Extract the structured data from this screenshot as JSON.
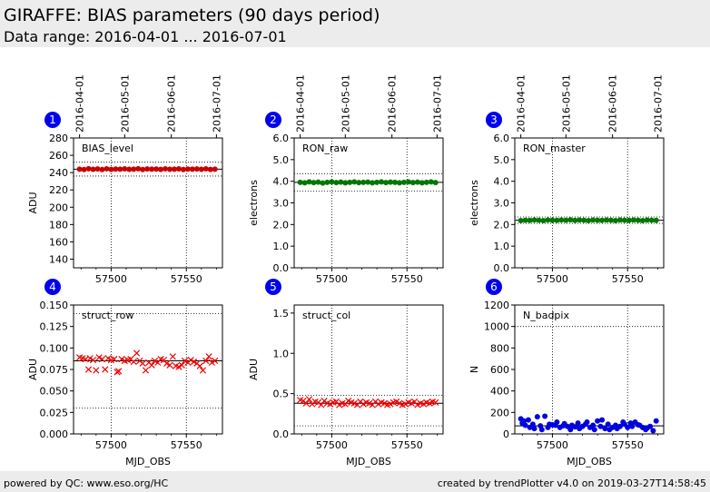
{
  "header": {
    "title": "GIRAFFE: BIAS parameters (90 days period)",
    "subtitle": "Data range: 2016-04-01 ... 2016-07-01"
  },
  "footer": {
    "left": "powered by QC: www.eso.org/HC",
    "right": "created by trendPlotter v4.0 on 2019-03-27T14:58:45"
  },
  "chart_data": [
    {
      "type": "scatter",
      "number": "1",
      "label": "BIAS_level",
      "xlabel": "",
      "ylabel": "ADU",
      "xlim": [
        57475,
        57574
      ],
      "ylim": [
        130,
        280
      ],
      "xticks": [
        57500,
        57550
      ],
      "yticks": [
        140,
        160,
        180,
        200,
        220,
        240,
        260,
        280
      ],
      "ytick_labels": [
        "140",
        "160",
        "180",
        "200",
        "220",
        "240",
        "260",
        "280"
      ],
      "date_ticks": [
        "2016-04-01",
        "2016-05-01",
        "2016-06-01",
        "2016-07-01"
      ],
      "date_tick_mjd": [
        57479,
        57509,
        57540,
        57570
      ],
      "marker": "circle",
      "color": "#cc0000",
      "mean": 244,
      "thresholds": [
        236,
        252
      ],
      "series": [
        {
          "x": [
            57479,
            57482,
            57485,
            57488,
            57491,
            57494,
            57497,
            57500,
            57503,
            57506,
            57509,
            57512,
            57515,
            57518,
            57521,
            57524,
            57527,
            57530,
            57533,
            57536,
            57539,
            57542,
            57545,
            57548,
            57551,
            57554,
            57557,
            57560,
            57563,
            57566,
            57569
          ],
          "y": [
            244.0,
            243.5,
            244.5,
            243.8,
            244.2,
            243.6,
            244.4,
            243.7,
            244.1,
            243.9,
            244.3,
            243.8,
            244.0,
            244.5,
            243.6,
            244.2,
            243.9,
            244.1,
            243.7,
            244.4,
            243.8,
            244.0,
            244.3,
            243.6,
            244.1,
            243.9,
            244.2,
            243.8,
            244.4,
            243.7,
            244.0
          ]
        }
      ]
    },
    {
      "type": "scatter",
      "number": "2",
      "label": "RON_raw",
      "xlabel": "",
      "ylabel": "electrons",
      "xlim": [
        57475,
        57574
      ],
      "ylim": [
        0,
        6
      ],
      "xticks": [
        57500,
        57550
      ],
      "yticks": [
        0,
        1,
        2,
        3,
        4,
        5,
        6
      ],
      "ytick_labels": [
        "0.0",
        "1.0",
        "2.0",
        "3.0",
        "4.0",
        "5.0",
        "6.0"
      ],
      "date_ticks": [
        "2016-04-01",
        "2016-05-01",
        "2016-06-01",
        "2016-07-01"
      ],
      "date_tick_mjd": [
        57479,
        57509,
        57540,
        57570
      ],
      "marker": "circle",
      "color": "#007700",
      "mean": 3.95,
      "thresholds": [
        3.55,
        4.35
      ],
      "series": [
        {
          "x": [
            57479,
            57482,
            57485,
            57488,
            57491,
            57494,
            57497,
            57500,
            57503,
            57506,
            57509,
            57512,
            57515,
            57518,
            57521,
            57524,
            57527,
            57530,
            57533,
            57536,
            57539,
            57542,
            57545,
            57548,
            57551,
            57554,
            57557,
            57560,
            57563,
            57566,
            57569
          ],
          "y": [
            3.95,
            3.93,
            3.97,
            3.94,
            3.96,
            3.92,
            3.95,
            3.97,
            3.94,
            3.96,
            3.93,
            3.95,
            3.97,
            3.94,
            3.95,
            3.96,
            3.93,
            3.95,
            3.97,
            3.94,
            3.96,
            3.95,
            3.93,
            3.95,
            3.97,
            3.94,
            3.96,
            3.93,
            3.95,
            3.97,
            3.94
          ]
        }
      ]
    },
    {
      "type": "scatter",
      "number": "3",
      "label": "RON_master",
      "xlabel": "",
      "ylabel": "electrons",
      "xlim": [
        57475,
        57574
      ],
      "ylim": [
        0,
        6
      ],
      "xticks": [
        57500,
        57550
      ],
      "yticks": [
        0,
        1,
        2,
        3,
        4,
        5,
        6
      ],
      "ytick_labels": [
        "0.0",
        "1.0",
        "2.0",
        "3.0",
        "4.0",
        "5.0",
        "6.0"
      ],
      "date_ticks": [
        "2016-04-01",
        "2016-05-01",
        "2016-06-01",
        "2016-07-01"
      ],
      "date_tick_mjd": [
        57479,
        57509,
        57540,
        57570
      ],
      "marker": "circle",
      "color": "#007700",
      "mean": 2.2,
      "thresholds": [
        2.05,
        2.35
      ],
      "series": [
        {
          "x": [
            57479,
            57482,
            57485,
            57488,
            57491,
            57494,
            57497,
            57500,
            57503,
            57506,
            57509,
            57512,
            57515,
            57518,
            57521,
            57524,
            57527,
            57530,
            57533,
            57536,
            57539,
            57542,
            57545,
            57548,
            57551,
            57554,
            57557,
            57560,
            57563,
            57566,
            57569
          ],
          "y": [
            2.18,
            2.2,
            2.19,
            2.21,
            2.2,
            2.18,
            2.21,
            2.2,
            2.19,
            2.21,
            2.2,
            2.22,
            2.19,
            2.21,
            2.2,
            2.18,
            2.21,
            2.2,
            2.19,
            2.21,
            2.2,
            2.18,
            2.21,
            2.2,
            2.19,
            2.21,
            2.2,
            2.18,
            2.21,
            2.2,
            2.19
          ]
        }
      ]
    },
    {
      "type": "scatter",
      "number": "4",
      "label": "struct_row",
      "xlabel": "MJD_OBS",
      "ylabel": "ADU",
      "xlim": [
        57475,
        57574
      ],
      "ylim": [
        0,
        0.15
      ],
      "xticks": [
        57500,
        57550
      ],
      "yticks": [
        0,
        0.025,
        0.05,
        0.075,
        0.1,
        0.125,
        0.15
      ],
      "ytick_labels": [
        "0.000",
        "0.025",
        "0.050",
        "0.075",
        "0.100",
        "0.125",
        "0.150"
      ],
      "date_ticks": [],
      "date_tick_mjd": [],
      "marker": "x",
      "color": "#ee0000",
      "mean": 0.085,
      "thresholds": [
        0.03,
        0.14
      ],
      "series": [
        {
          "x": [
            57479,
            57481,
            57483,
            57485,
            57486,
            57488,
            57490,
            57492,
            57494,
            57496,
            57498,
            57500,
            57502,
            57504,
            57505,
            57507,
            57509,
            57511,
            57513,
            57515,
            57517,
            57519,
            57521,
            57523,
            57525,
            57527,
            57529,
            57531,
            57533,
            57535,
            57537,
            57539,
            57541,
            57543,
            57545,
            57547,
            57549,
            57551,
            57553,
            57555,
            57557,
            57559,
            57561,
            57563,
            57565,
            57567,
            57569
          ],
          "y": [
            0.089,
            0.088,
            0.087,
            0.075,
            0.088,
            0.086,
            0.074,
            0.089,
            0.087,
            0.075,
            0.088,
            0.086,
            0.087,
            0.072,
            0.073,
            0.087,
            0.085,
            0.086,
            0.087,
            0.084,
            0.094,
            0.085,
            0.082,
            0.074,
            0.083,
            0.08,
            0.085,
            0.083,
            0.087,
            0.086,
            0.082,
            0.08,
            0.09,
            0.079,
            0.078,
            0.08,
            0.085,
            0.083,
            0.086,
            0.084,
            0.082,
            0.079,
            0.074,
            0.085,
            0.09,
            0.083,
            0.085
          ]
        }
      ]
    },
    {
      "type": "scatter",
      "number": "5",
      "label": "struct_col",
      "xlabel": "MJD_OBS",
      "ylabel": "ADU",
      "xlim": [
        57475,
        57574
      ],
      "ylim": [
        0,
        1.6
      ],
      "xticks": [
        57500,
        57550
      ],
      "yticks": [
        0,
        0.5,
        1.0,
        1.5
      ],
      "ytick_labels": [
        "0.0",
        "0.5",
        "1.0",
        "1.5"
      ],
      "date_ticks": [],
      "date_tick_mjd": [],
      "marker": "x",
      "color": "#ee0000",
      "mean": 0.38,
      "thresholds": [
        0.1,
        0.48
      ],
      "series": [
        {
          "x": [
            57479,
            57481,
            57483,
            57485,
            57487,
            57489,
            57491,
            57493,
            57495,
            57497,
            57499,
            57501,
            57503,
            57505,
            57507,
            57509,
            57511,
            57513,
            57515,
            57517,
            57519,
            57521,
            57523,
            57525,
            57527,
            57529,
            57531,
            57533,
            57535,
            57537,
            57539,
            57541,
            57543,
            57545,
            57547,
            57549,
            57551,
            57553,
            57555,
            57557,
            57559,
            57561,
            57563,
            57565,
            57567,
            57569
          ],
          "y": [
            0.42,
            0.41,
            0.38,
            0.43,
            0.37,
            0.4,
            0.39,
            0.36,
            0.41,
            0.38,
            0.37,
            0.39,
            0.4,
            0.36,
            0.38,
            0.37,
            0.41,
            0.39,
            0.38,
            0.36,
            0.4,
            0.37,
            0.39,
            0.38,
            0.36,
            0.4,
            0.37,
            0.39,
            0.38,
            0.36,
            0.37,
            0.39,
            0.4,
            0.38,
            0.36,
            0.37,
            0.39,
            0.38,
            0.4,
            0.36,
            0.38,
            0.37,
            0.39,
            0.38,
            0.4,
            0.39
          ]
        }
      ]
    },
    {
      "type": "scatter",
      "number": "6",
      "label": "N_badpix",
      "xlabel": "MJD_OBS",
      "ylabel": "N",
      "xlim": [
        57475,
        57574
      ],
      "ylim": [
        0,
        1200
      ],
      "xticks": [
        57500,
        57550
      ],
      "yticks": [
        0,
        200,
        400,
        600,
        800,
        1000,
        1200
      ],
      "ytick_labels": [
        "0",
        "200",
        "400",
        "600",
        "800",
        "1000",
        "1200"
      ],
      "date_ticks": [],
      "date_tick_mjd": [],
      "marker": "circle",
      "color": "#0000dd",
      "mean": 75,
      "thresholds": [
        75,
        1000
      ],
      "series": [
        {
          "x": [
            57479,
            57480,
            57481,
            57482,
            57484,
            57485,
            57487,
            57488,
            57490,
            57492,
            57493,
            57495,
            57497,
            57498,
            57500,
            57502,
            57503,
            57505,
            57507,
            57508,
            57510,
            57512,
            57513,
            57515,
            57517,
            57518,
            57520,
            57522,
            57523,
            57525,
            57527,
            57528,
            57530,
            57532,
            57533,
            57535,
            57537,
            57538,
            57540,
            57542,
            57543,
            57545,
            57547,
            57548,
            57550,
            57552,
            57553,
            57555,
            57557,
            57558,
            57560,
            57562,
            57563,
            57565,
            57567,
            57569
          ],
          "y": [
            140,
            100,
            120,
            80,
            130,
            60,
            90,
            50,
            160,
            75,
            40,
            165,
            60,
            90,
            85,
            80,
            110,
            60,
            75,
            95,
            70,
            40,
            80,
            65,
            100,
            50,
            70,
            90,
            110,
            60,
            80,
            40,
            120,
            70,
            130,
            50,
            90,
            40,
            60,
            80,
            50,
            70,
            110,
            90,
            60,
            100,
            70,
            110,
            85,
            80,
            60,
            40,
            55,
            70,
            30,
            120
          ]
        }
      ]
    }
  ]
}
